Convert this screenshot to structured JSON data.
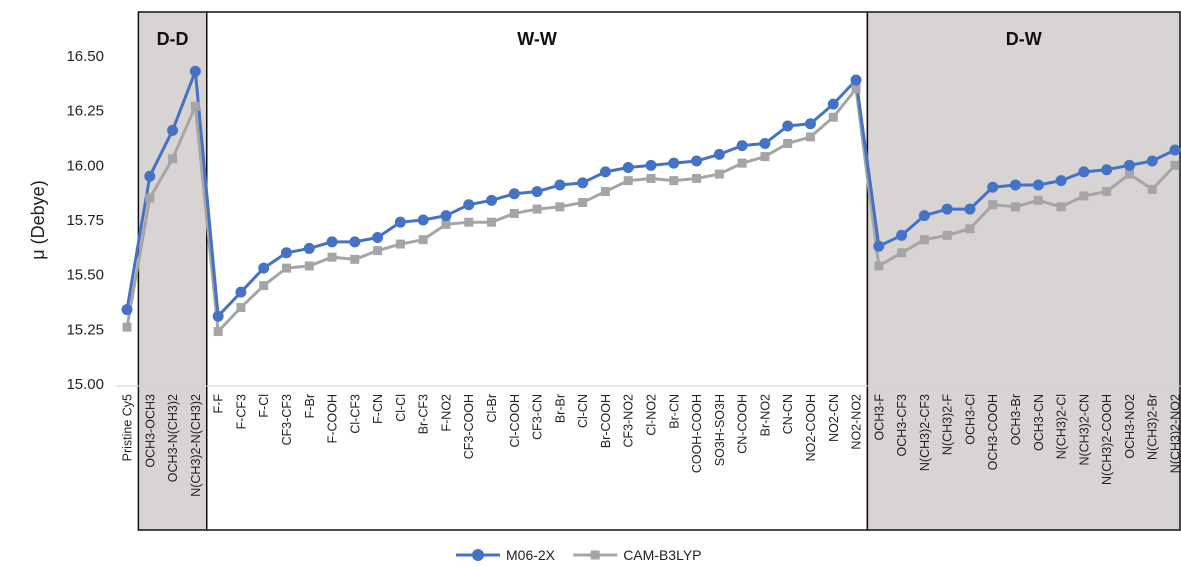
{
  "chart_data": {
    "type": "line",
    "ylabel": "μ (Debye)",
    "ylim": [
      15.0,
      16.5
    ],
    "yticks": [
      "15.00",
      "15.25",
      "15.50",
      "15.75",
      "16.00",
      "16.25",
      "16.50"
    ],
    "grid": false,
    "legend_position": "bottom-center",
    "categories": [
      "Pristine Cy5",
      "OCH3-OCH3",
      "OCH3-N(CH3)2",
      "N(CH3)2-N(CH3)2",
      "F-F",
      "F-CF3",
      "F-Cl",
      "CF3-CF3",
      "F-Br",
      "F-COOH",
      "Cl-CF3",
      "F-CN",
      "Cl-Cl",
      "Br-CF3",
      "F-NO2",
      "CF3-COOH",
      "Cl-Br",
      "Cl-COOH",
      "CF3-CN",
      "Br-Br",
      "Cl-CN",
      "Br-COOH",
      "CF3-NO2",
      "Cl-NO2",
      "Br-CN",
      "COOH-COOH",
      "SO3H-SO3H",
      "CN-COOH",
      "Br-NO2",
      "CN-CN",
      "NO2-COOH",
      "NO2-CN",
      "NO2-NO2",
      "OCH3-F",
      "OCH3-CF3",
      "N(CH3)2-CF3",
      "N(CH3)2-F",
      "OCH3-Cl",
      "OCH3-COOH",
      "OCH3-Br",
      "OCH3-CN",
      "N(CH3)2-Cl",
      "N(CH3)2-CN",
      "N(CH3)2-COOH",
      "OCH3-NO2",
      "N(CH3)2-Br",
      "N(CH3)2-NO2"
    ],
    "regions": [
      {
        "label": "D-D",
        "start": 1,
        "end": 3,
        "shaded": true
      },
      {
        "label": "W-W",
        "start": 4,
        "end": 32,
        "shaded": false
      },
      {
        "label": "D-W",
        "start": 33,
        "end": 46,
        "shaded": true
      }
    ],
    "segments": [
      [
        0,
        3
      ],
      [
        4,
        32
      ],
      [
        33,
        46
      ]
    ],
    "series": [
      {
        "name": "M06-2X",
        "color": "#4472c4",
        "marker": "circle",
        "values": [
          15.34,
          15.95,
          16.16,
          16.43,
          15.31,
          15.42,
          15.53,
          15.6,
          15.62,
          15.65,
          15.65,
          15.67,
          15.74,
          15.75,
          15.77,
          15.82,
          15.84,
          15.87,
          15.88,
          15.91,
          15.92,
          15.97,
          15.99,
          16.0,
          16.01,
          16.02,
          16.05,
          16.09,
          16.1,
          16.18,
          16.19,
          16.28,
          16.39,
          15.63,
          15.68,
          15.77,
          15.8,
          15.8,
          15.9,
          15.91,
          15.91,
          15.93,
          15.97,
          15.98,
          16.0,
          16.02,
          16.07
        ]
      },
      {
        "name": "CAM-B3LYP",
        "color": "#a5a5a5",
        "marker": "square",
        "values": [
          15.26,
          15.85,
          16.03,
          16.27,
          15.24,
          15.35,
          15.45,
          15.53,
          15.54,
          15.58,
          15.57,
          15.61,
          15.64,
          15.66,
          15.73,
          15.74,
          15.74,
          15.78,
          15.8,
          15.81,
          15.83,
          15.88,
          15.93,
          15.94,
          15.93,
          15.94,
          15.96,
          16.01,
          16.04,
          16.1,
          16.13,
          16.22,
          16.35,
          15.54,
          15.6,
          15.66,
          15.68,
          15.71,
          15.82,
          15.81,
          15.84,
          15.81,
          15.86,
          15.88,
          15.96,
          15.89,
          16.0
        ]
      }
    ]
  }
}
